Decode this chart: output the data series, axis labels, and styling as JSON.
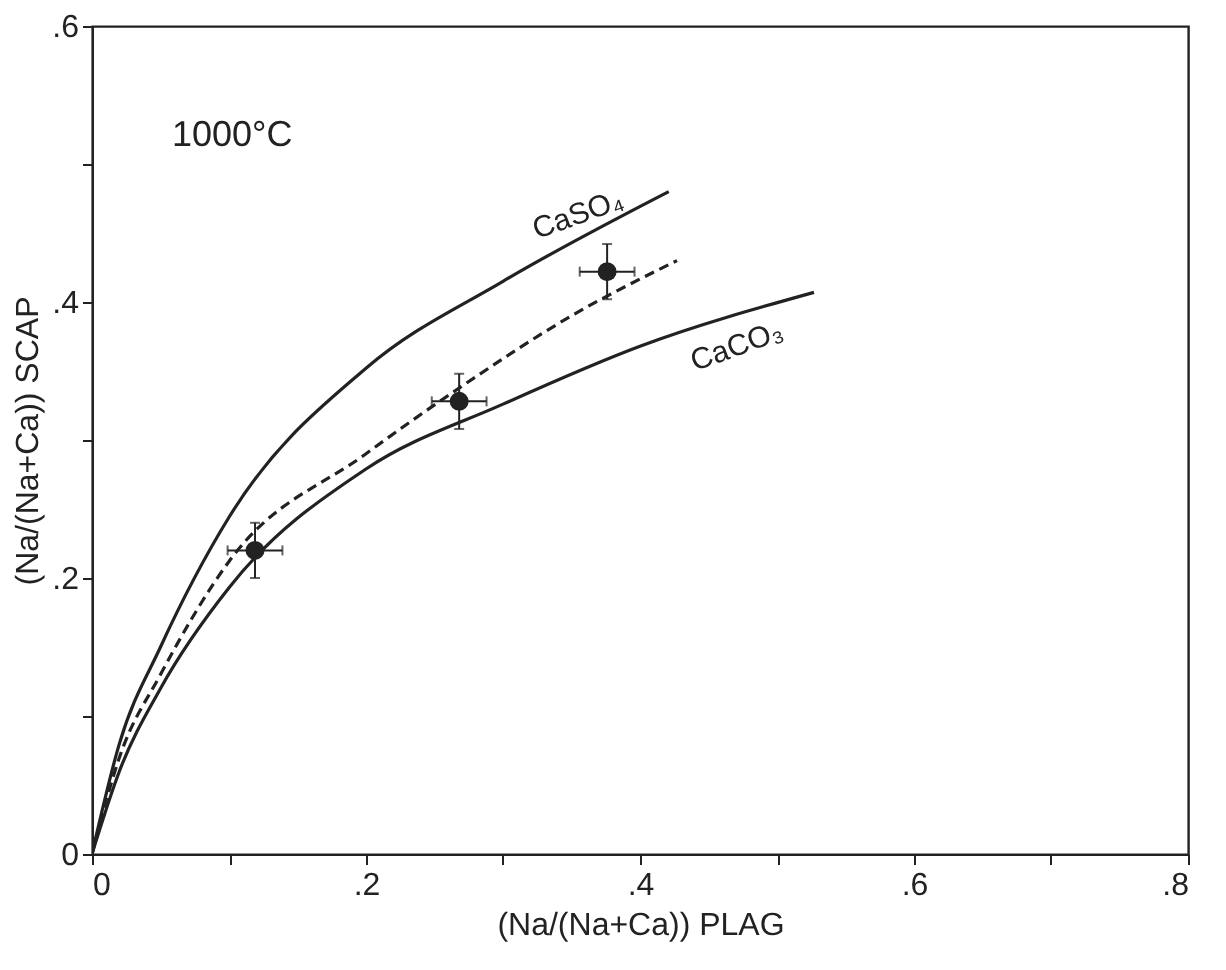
{
  "chart_data": {
    "type": "line",
    "xlabel": "(Na/(Na+Ca)) PLAG",
    "ylabel": "(Na/(Na+Ca)) SCAP",
    "annotations": [
      "1000°C"
    ],
    "xlim": [
      0,
      0.8
    ],
    "ylim": [
      0,
      0.6
    ],
    "xticks": [
      0,
      {
        "value": 0.1,
        "label": null
      },
      {
        "value": 0.2,
        "label": ".2"
      },
      {
        "value": 0.3,
        "label": null
      },
      {
        "value": 0.4,
        "label": ".4"
      },
      {
        "value": 0.5,
        "label": null
      },
      {
        "value": 0.6,
        "label": ".6"
      },
      {
        "value": 0.7,
        "label": null
      },
      {
        "value": 0.8,
        "label": ".8"
      }
    ],
    "yticks": [
      0,
      {
        "value": 0.1,
        "label": null
      },
      {
        "value": 0.2,
        "label": ".2"
      },
      {
        "value": 0.3,
        "label": null
      },
      {
        "value": 0.4,
        "label": ".4"
      },
      {
        "value": 0.5,
        "label": null
      },
      {
        "value": 0.6,
        "label": ".6"
      }
    ],
    "grid": false,
    "series": [
      {
        "name": "CaSO₄",
        "line_style": "solid",
        "color": "#222222",
        "x": [
          0,
          0.02,
          0.05,
          0.1,
          0.2,
          0.3,
          0.421
        ],
        "values": [
          0,
          0.08,
          0.15,
          0.244,
          0.352,
          0.415,
          0.48
        ]
      },
      {
        "name": "CaCO₃",
        "line_style": "solid",
        "color": "#222222",
        "x": [
          0,
          0.02,
          0.05,
          0.1,
          0.2,
          0.3,
          0.4,
          0.527
        ],
        "values": [
          0,
          0.06,
          0.12,
          0.193,
          0.279,
          0.326,
          0.368,
          0.407
        ]
      },
      {
        "line_style": "dashed",
        "color": "#222222",
        "x": [
          0,
          0.02,
          0.05,
          0.1,
          0.2,
          0.27,
          0.35,
          0.427
        ],
        "values": [
          0,
          0.07,
          0.13,
          0.212,
          0.29,
          0.339,
          0.39,
          0.43
        ]
      },
      {
        "type": "scatter",
        "marker": "circle",
        "color": "#222222",
        "x": [
          0.119,
          0.268,
          0.376
        ],
        "values": [
          0.22,
          0.328,
          0.422
        ],
        "errors": [
          0.02,
          0.02,
          0.02
        ],
        "xerrors": [
          0.02,
          0.02,
          0.02
        ]
      }
    ]
  }
}
